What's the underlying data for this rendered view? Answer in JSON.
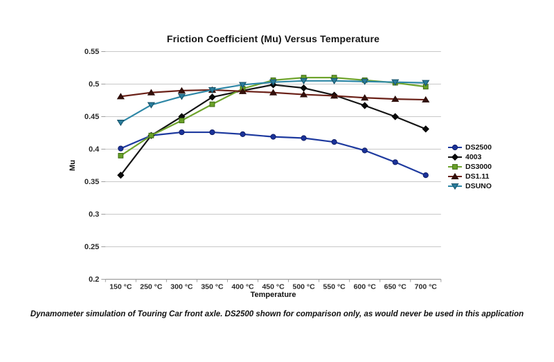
{
  "title": "Friction Coefficient (Mu) Versus Temperature",
  "caption": "Dynamometer simulation of Touring Car front axle. DS2500 shown for comparison only, as would never be used in this application",
  "chart_data": {
    "type": "line",
    "title": "Friction Coefficient (Mu) Versus Temperature",
    "xlabel": "Temperature",
    "ylabel": "Mu",
    "categories": [
      "150 °C",
      "250 °C",
      "300 °C",
      "350 °C",
      "400 °C",
      "450 °C",
      "500 °C",
      "550 °C",
      "600 °C",
      "650 °C",
      "700 °C"
    ],
    "ylim": [
      0.2,
      0.55
    ],
    "ytick_labels": [
      "0.2",
      "0.25",
      "0.3",
      "0.35",
      "0.4",
      "0.45",
      "0.5",
      "0.55"
    ],
    "grid": "horizontal-only",
    "legend_position": "right",
    "axis_color": "#9e9e9e",
    "grid_color": "#c8c8c8",
    "tick_label_color": "#2a2a2a",
    "series": [
      {
        "name": "DS2500",
        "marker": "circle",
        "color": "#1E3A9F",
        "marker_fill": "#1B339A",
        "marker_stroke": "#111E66",
        "values": [
          0.401,
          0.421,
          0.426,
          0.426,
          0.423,
          0.419,
          0.417,
          0.411,
          0.398,
          0.38,
          0.36
        ]
      },
      {
        "name": "4003",
        "marker": "diamond",
        "color": "#141414",
        "marker_fill": "#0a0a0a",
        "marker_stroke": "#000000",
        "values": [
          0.36,
          0.421,
          0.45,
          0.48,
          0.49,
          0.499,
          0.494,
          0.483,
          0.467,
          0.45,
          0.431
        ]
      },
      {
        "name": "DS3000",
        "marker": "square",
        "color": "#6FA42D",
        "marker_fill": "#69A127",
        "marker_stroke": "#3F6B16",
        "values": [
          0.39,
          0.421,
          0.444,
          0.469,
          0.493,
          0.506,
          0.51,
          0.51,
          0.506,
          0.502,
          0.496
        ]
      },
      {
        "name": "DS1.11",
        "marker": "triangle-up",
        "color": "#6B2118",
        "marker_fill": "#35100B",
        "marker_stroke": "#2A0C08",
        "values": [
          0.481,
          0.487,
          0.49,
          0.491,
          0.489,
          0.487,
          0.484,
          0.482,
          0.479,
          0.477,
          0.476
        ]
      },
      {
        "name": "DSUNO",
        "marker": "triangle-down",
        "color": "#2E87A6",
        "marker_fill": "#2A7C9B",
        "marker_stroke": "#155067",
        "values": [
          0.441,
          0.468,
          0.481,
          0.491,
          0.499,
          0.503,
          0.505,
          0.505,
          0.504,
          0.503,
          0.502
        ]
      }
    ]
  }
}
